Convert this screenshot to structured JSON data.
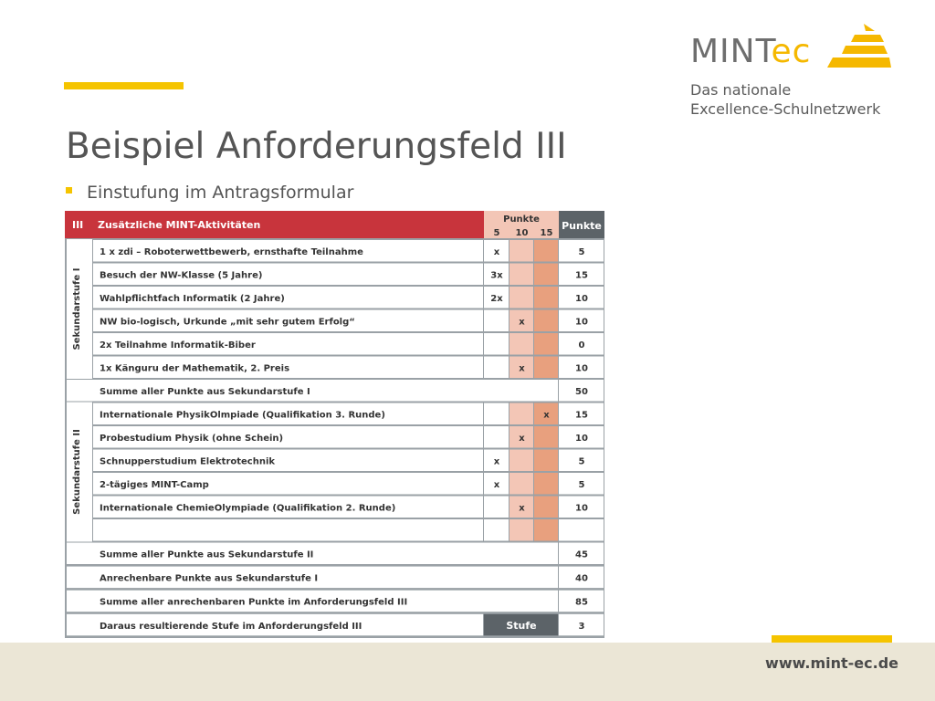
{
  "logo": {
    "word_main": "MINT",
    "word_accent": "ec",
    "tagline_1": "Das nationale",
    "tagline_2": "Excellence-Schulnetzwerk"
  },
  "slide": {
    "title": "Beispiel Anforderungsfeld III",
    "bullet": "Einstufung im Antragsformular"
  },
  "footer": {
    "url": "www.mint-ec.de"
  },
  "colors": {
    "accent": "#f5c400",
    "header_red": "#c8343c",
    "pink": "#f3c6b6",
    "salmon": "#e8a07e",
    "gray": "#9aa1a6",
    "dark_gray": "#5c6368"
  },
  "form": {
    "section_number": "III",
    "section_title": "Zusätzliche MINT-Aktivitäten",
    "points_header": "Punkte",
    "points_cols": [
      "5",
      "10",
      "15"
    ],
    "total_header": "Punkte",
    "group1_label": "Sekundarstufe I",
    "group2_label": "Sekundarstufe II",
    "rows1": [
      {
        "text": "1 x zdi – Roboterwettbewerb, ernsthafte Teilnahme",
        "m5": "x",
        "m10": "",
        "m15": "",
        "pts": "5"
      },
      {
        "text": "Besuch der NW-Klasse (5 Jahre)",
        "m5": "3x",
        "m10": "",
        "m15": "",
        "pts": "15"
      },
      {
        "text": "Wahlpflichtfach Informatik (2 Jahre)",
        "m5": "2x",
        "m10": "",
        "m15": "",
        "pts": "10"
      },
      {
        "text": "NW bio-logisch, Urkunde „mit sehr gutem Erfolg“",
        "m5": "",
        "m10": "x",
        "m15": "",
        "pts": "10"
      },
      {
        "text": "2x Teilnahme Informatik-Biber",
        "m5": "",
        "m10": "",
        "m15": "",
        "pts": "0"
      },
      {
        "text": "1x Känguru der Mathematik, 2. Preis",
        "m5": "",
        "m10": "x",
        "m15": "",
        "pts": "10"
      }
    ],
    "sum1": {
      "label": "Summe aller Punkte aus Sekundarstufe I",
      "pts": "50"
    },
    "rows2": [
      {
        "text": "Internationale PhysikOlmpiade (Qualifikation 3. Runde)",
        "m5": "",
        "m10": "",
        "m15": "x",
        "pts": "15"
      },
      {
        "text": "Probestudium Physik (ohne Schein)",
        "m5": "",
        "m10": "x",
        "m15": "",
        "pts": "10"
      },
      {
        "text": "Schnupperstudium Elektrotechnik",
        "m5": "x",
        "m10": "",
        "m15": "",
        "pts": "5"
      },
      {
        "text": "2-tägiges MINT-Camp",
        "m5": "x",
        "m10": "",
        "m15": "",
        "pts": "5"
      },
      {
        "text": "Internationale ChemieOlympiade (Qualifikation 2. Runde)",
        "m5": "",
        "m10": "x",
        "m15": "",
        "pts": "10"
      },
      {
        "text": "",
        "m5": "",
        "m10": "",
        "m15": "",
        "pts": ""
      }
    ],
    "summary": [
      {
        "label": "Summe aller Punkte aus Sekundarstufe II",
        "pts": "45"
      },
      {
        "label": "Anrechenbare Punkte aus Sekundarstufe I",
        "pts": "40"
      },
      {
        "label": "Summe aller anrechenbaren Punkte im Anforderungsfeld III",
        "pts": "85"
      }
    ],
    "final": {
      "label": "Daraus resultierende Stufe im Anforderungsfeld III",
      "stufe_label": "Stufe",
      "value": "3"
    }
  }
}
